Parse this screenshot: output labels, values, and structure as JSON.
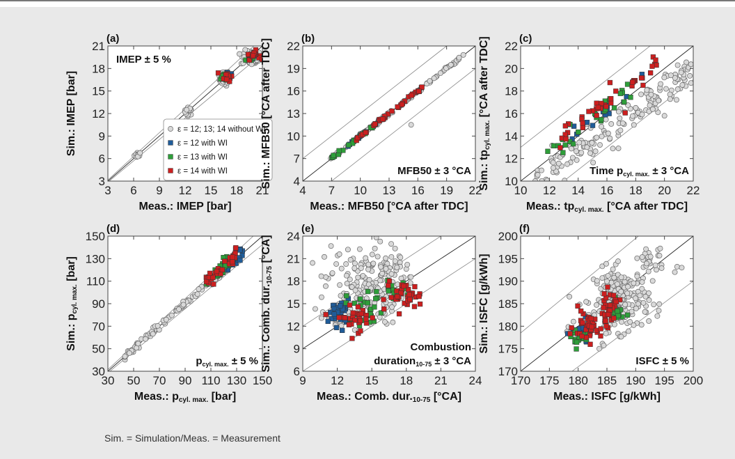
{
  "footnote": "Sim. = Simulation/Meas. = Measurement",
  "colors": {
    "without_wi_fill": "#d9d9d9",
    "eps12_fill": "#1f5c99",
    "eps13_fill": "#2e9e3a",
    "eps14_fill": "#cc1f1f",
    "panel_background": "#e9e9e9",
    "plot_background": "#ffffff"
  },
  "legend": [
    {
      "label": "ε = 12; 13; 14 without WI",
      "marker": "circle",
      "color": "#d9d9d9"
    },
    {
      "label": "ε = 12 with WI",
      "marker": "square",
      "color": "#1f5c99"
    },
    {
      "label": "ε = 13 with WI",
      "marker": "square",
      "color": "#2e9e3a"
    },
    {
      "label": "ε = 14 with WI",
      "marker": "square",
      "color": "#cc1f1f"
    }
  ],
  "chart_data": [
    {
      "id": "a",
      "panel_label": "(a)",
      "type": "scatter",
      "xlabel": "Meas.: IMEP [bar]",
      "ylabel": "Sim.: IMEP [bar]",
      "xlim": [
        3,
        21
      ],
      "ylim": [
        3,
        21
      ],
      "xticks": [
        3,
        6,
        9,
        12,
        15,
        18,
        21
      ],
      "yticks": [
        3,
        6,
        9,
        12,
        15,
        18,
        21
      ],
      "tolerance": {
        "kind": "relative",
        "value": 0.05
      },
      "annotation": "IMEP ± 5 %",
      "annotation_position": "top-left",
      "legend": true,
      "series": [
        {
          "name": "ε = 12; 13; 14 without WI",
          "clusters": [
            {
              "cx": 6.5,
              "cy": 6.5,
              "sx": 0.2,
              "sy": 0.2,
              "n": 15
            },
            {
              "cx": 12.4,
              "cy": 12.3,
              "sx": 0.25,
              "sy": 0.25,
              "n": 18
            },
            {
              "cx": 16.6,
              "cy": 16.5,
              "sx": 0.3,
              "sy": 0.4,
              "n": 40
            },
            {
              "cx": 19.7,
              "cy": 19.4,
              "sx": 0.6,
              "sy": 0.5,
              "n": 60
            }
          ]
        },
        {
          "name": "ε = 12 with WI",
          "clusters": [
            {
              "cx": 17.0,
              "cy": 17.1,
              "sx": 0.3,
              "sy": 0.35,
              "n": 8
            },
            {
              "cx": 19.8,
              "cy": 19.6,
              "sx": 0.4,
              "sy": 0.3,
              "n": 10
            }
          ]
        },
        {
          "name": "ε = 13 with WI",
          "clusters": [
            {
              "cx": 16.8,
              "cy": 16.9,
              "sx": 0.3,
              "sy": 0.35,
              "n": 10
            },
            {
              "cx": 19.5,
              "cy": 19.5,
              "sx": 0.4,
              "sy": 0.3,
              "n": 10
            }
          ]
        },
        {
          "name": "ε = 14 with WI",
          "clusters": [
            {
              "cx": 16.9,
              "cy": 17.0,
              "sx": 0.3,
              "sy": 0.35,
              "n": 12
            },
            {
              "cx": 19.9,
              "cy": 19.8,
              "sx": 0.4,
              "sy": 0.3,
              "n": 16
            }
          ]
        }
      ]
    },
    {
      "id": "b",
      "panel_label": "(b)",
      "type": "scatter",
      "xlabel": "Meas.: MFB50 [°CA after TDC]",
      "ylabel": "Sim.: MFB50 [°CA after TDC]",
      "xlim": [
        4,
        22
      ],
      "ylim": [
        4,
        22
      ],
      "xticks": [
        4,
        7,
        10,
        13,
        16,
        19,
        22
      ],
      "yticks": [
        4,
        7,
        10,
        13,
        16,
        19,
        22
      ],
      "tolerance": {
        "kind": "absolute",
        "value": 3
      },
      "annotation": "MFB50 ± 3 °CA",
      "annotation_position": "bottom-right",
      "series": [
        {
          "name": "ε = 12; 13; 14 without WI",
          "line": {
            "x0": 6.8,
            "x1": 20.8,
            "spread": 0.1,
            "n": 120
          },
          "extra_points": [
            [
              15.3,
              11.5
            ]
          ]
        },
        {
          "name": "ε = 12 with WI",
          "line": {
            "x0": 8.5,
            "x1": 13.5,
            "spread": 0.1,
            "n": 12
          }
        },
        {
          "name": "ε = 13 with WI",
          "line": {
            "x0": 7.0,
            "x1": 11.5,
            "spread": 0.1,
            "n": 18
          }
        },
        {
          "name": "ε = 14 with WI",
          "line": {
            "x0": 9.5,
            "x1": 16.5,
            "spread": 0.1,
            "n": 35
          }
        }
      ]
    },
    {
      "id": "c",
      "panel_label": "(c)",
      "type": "scatter",
      "xlabel_parts": [
        "Meas.: tp",
        "cyl. max.",
        " [°CA after TDC]"
      ],
      "ylabel_parts": [
        "Sim.: tp",
        "cyl. max.",
        " [°CA after TDC]"
      ],
      "xlim": [
        10,
        22
      ],
      "ylim": [
        10,
        22
      ],
      "xticks": [
        10,
        12,
        14,
        16,
        18,
        20,
        22
      ],
      "yticks": [
        10,
        12,
        14,
        16,
        18,
        20,
        22
      ],
      "tolerance": {
        "kind": "absolute",
        "value": 3
      },
      "annotation_parts": [
        "Time p",
        "cyl. max.",
        " ± 3 °CA"
      ],
      "annotation_position": "bottom-right",
      "series": [
        {
          "name": "ε = 12; 13; 14 without WI",
          "band": {
            "x0": 11.0,
            "x1": 22.0,
            "slope": 0.92,
            "offset": -0.3,
            "spread": 0.75,
            "n": 170
          },
          "extra_points": [
            [
              20.0,
              15.8
            ]
          ]
        },
        {
          "name": "ε = 12 with WI",
          "band": {
            "x0": 13.5,
            "x1": 18.5,
            "slope": 1.0,
            "offset": 0.4,
            "spread": 0.4,
            "n": 18
          }
        },
        {
          "name": "ε = 13 with WI",
          "band": {
            "x0": 11.8,
            "x1": 18.0,
            "slope": 1.0,
            "offset": 0.7,
            "spread": 0.5,
            "n": 30
          }
        },
        {
          "name": "ε = 14 with WI",
          "band": {
            "x0": 12.5,
            "x1": 19.5,
            "slope": 1.0,
            "offset": 1.0,
            "spread": 0.55,
            "n": 40
          }
        }
      ]
    },
    {
      "id": "d",
      "panel_label": "(d)",
      "type": "scatter",
      "xlabel_parts": [
        "Meas.: p",
        "cyl. max.",
        " [bar]"
      ],
      "ylabel_parts": [
        "Sim.: p",
        "cyl. max.",
        " [bar]"
      ],
      "xlim": [
        30,
        150
      ],
      "ylim": [
        30,
        150
      ],
      "xticks": [
        30,
        50,
        70,
        90,
        110,
        130,
        150
      ],
      "yticks": [
        30,
        50,
        70,
        90,
        110,
        130,
        150
      ],
      "tolerance": {
        "kind": "relative",
        "value": 0.05
      },
      "annotation_parts": [
        "p",
        "cyl. max.",
        " ± 5 %"
      ],
      "annotation_position": "bottom-right",
      "series": [
        {
          "name": "ε = 12; 13; 14 without WI",
          "band": {
            "x0": 43,
            "x1": 125,
            "slope": 1.0,
            "offset": 0,
            "spread": 1.8,
            "n": 110
          }
        },
        {
          "name": "ε = 12 with WI",
          "band": {
            "x0": 112,
            "x1": 135,
            "slope": 1.0,
            "offset": 1,
            "spread": 3,
            "n": 30
          }
        },
        {
          "name": "ε = 13 with WI",
          "band": {
            "x0": 105,
            "x1": 128,
            "slope": 1.0,
            "offset": 3,
            "spread": 3,
            "n": 30
          }
        },
        {
          "name": "ε = 14 with WI",
          "band": {
            "x0": 106,
            "x1": 130,
            "slope": 1.0,
            "offset": 4,
            "spread": 3,
            "n": 35
          }
        }
      ]
    },
    {
      "id": "e",
      "panel_label": "(e)",
      "type": "scatter",
      "xlabel_parts": [
        "Meas.: Comb. dur.",
        "10-75",
        " [°CA]"
      ],
      "ylabel_parts": [
        "Sim.: Comb. dur.",
        "10-75",
        " [°CA]"
      ],
      "xlim": [
        9,
        24
      ],
      "ylim": [
        6,
        24
      ],
      "xticks": [
        9,
        12,
        15,
        18,
        21,
        24
      ],
      "yticks": [
        6,
        9,
        12,
        15,
        18,
        21,
        24
      ],
      "tolerance": {
        "kind": "absolute",
        "value": 3
      },
      "annotation_lines": [
        [
          "Combustion"
        ],
        [
          "duration",
          "10-75",
          " ± 3 °CA"
        ]
      ],
      "annotation_position": "bottom-right",
      "series": [
        {
          "name": "ε = 12; 13; 14 without WI",
          "clusters": [
            {
              "cx": 14.3,
              "cy": 17.5,
              "sx": 1.7,
              "sy": 2.7,
              "n": 170
            },
            {
              "cx": 12.2,
              "cy": 13.0,
              "sx": 0.7,
              "sy": 0.6,
              "n": 25
            },
            {
              "cx": 16.8,
              "cy": 19.5,
              "sx": 0.7,
              "sy": 1.0,
              "n": 20
            }
          ]
        },
        {
          "name": "ε = 12 with WI",
          "clusters": [
            {
              "cx": 12.2,
              "cy": 13.8,
              "sx": 0.45,
              "sy": 0.9,
              "n": 40
            }
          ]
        },
        {
          "name": "ε = 13 with WI",
          "clusters": [
            {
              "cx": 14.5,
              "cy": 14.6,
              "sx": 0.9,
              "sy": 1.2,
              "n": 25
            },
            {
              "cx": 16.8,
              "cy": 16.8,
              "sx": 0.6,
              "sy": 0.6,
              "n": 12
            }
          ]
        },
        {
          "name": "ε = 14 with WI",
          "clusters": [
            {
              "cx": 13.7,
              "cy": 13.2,
              "sx": 0.9,
              "sy": 0.9,
              "n": 30
            },
            {
              "cx": 17.8,
              "cy": 16.0,
              "sx": 0.8,
              "sy": 0.9,
              "n": 35
            }
          ]
        }
      ]
    },
    {
      "id": "f",
      "panel_label": "(f)",
      "type": "scatter",
      "xlabel": "Meas.: ISFC [g/kWh]",
      "ylabel": "Sim.: ISFC [g/kWh]",
      "xlim": [
        170,
        200
      ],
      "ylim": [
        170,
        200
      ],
      "xticks": [
        170,
        175,
        180,
        185,
        190,
        195,
        200
      ],
      "yticks": [
        170,
        175,
        180,
        185,
        190,
        195,
        200
      ],
      "tolerance": {
        "kind": "relative",
        "value": 0.05
      },
      "annotation": "ISFC ± 5 %",
      "annotation_position": "bottom-right",
      "series": [
        {
          "name": "ε = 12; 13; 14 without WI",
          "clusters": [
            {
              "cx": 187.5,
              "cy": 186.0,
              "sx": 2.4,
              "sy": 3.5,
              "n": 190
            },
            {
              "cx": 192.5,
              "cy": 195.0,
              "sx": 1.2,
              "sy": 2.0,
              "n": 25
            },
            {
              "cx": 182.0,
              "cy": 180.0,
              "sx": 1.5,
              "sy": 2.0,
              "n": 25
            }
          ],
          "extra_points": [
            [
              197.2,
              193.2
            ],
            [
              198.0,
              193.0
            ],
            [
              196.8,
              192.0
            ]
          ]
        },
        {
          "name": "ε = 12 with WI",
          "clusters": [
            {
              "cx": 180.5,
              "cy": 178.3,
              "sx": 0.9,
              "sy": 1.3,
              "n": 20
            }
          ]
        },
        {
          "name": "ε = 13 with WI",
          "clusters": [
            {
              "cx": 180.0,
              "cy": 177.5,
              "sx": 0.9,
              "sy": 1.2,
              "n": 20
            },
            {
              "cx": 186.2,
              "cy": 183.0,
              "sx": 0.8,
              "sy": 1.3,
              "n": 20
            }
          ]
        },
        {
          "name": "ε = 14 with WI",
          "clusters": [
            {
              "cx": 182.0,
              "cy": 180.0,
              "sx": 1.4,
              "sy": 1.8,
              "n": 40
            },
            {
              "cx": 185.5,
              "cy": 184.5,
              "sx": 0.8,
              "sy": 1.6,
              "n": 25
            }
          ]
        }
      ]
    }
  ]
}
